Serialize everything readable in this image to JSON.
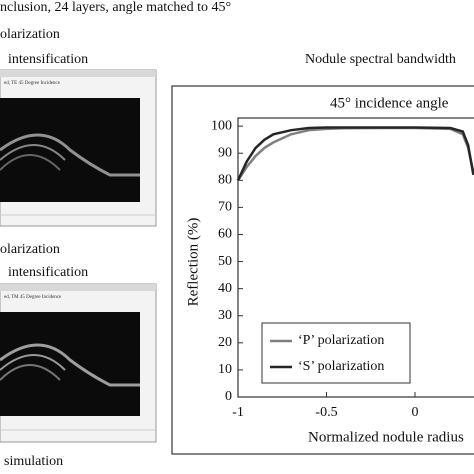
{
  "captions": {
    "top": "nclusion, 24 layers, angle matched to 45°",
    "first_pol": "olarization",
    "first_int": "intensification",
    "second_pol": "olarization",
    "second_int": "intensification",
    "bottom": "simulation"
  },
  "images": [
    {
      "header": "ed, TE 45 Degree Incidence"
    },
    {
      "header": "ed, TM 45 Degree Incidence"
    }
  ],
  "chart_data": {
    "type": "line",
    "title": "Nodule spectral bandwidth",
    "annotation": "45° incidence angle",
    "x_label": "Normalized nodule radius",
    "y_label": "Reflection (%)",
    "x": [
      -1,
      -0.95,
      -0.9,
      -0.85,
      -0.8,
      -0.7,
      -0.6,
      -0.5,
      -0.4,
      -0.2,
      0,
      0.2,
      0.27,
      0.3,
      0.33
    ],
    "series": [
      {
        "name": "‘P’ polarization",
        "color": "#808080",
        "values": [
          80,
          85,
          89,
          92,
          94,
          97,
          98.5,
          99,
          99.2,
          99.3,
          99.3,
          99,
          97,
          92,
          83
        ]
      },
      {
        "name": "‘S’ polarization",
        "color": "#262626",
        "values": [
          80,
          87,
          92,
          95,
          97,
          98.5,
          99.3,
          99.5,
          99.5,
          99.5,
          99.5,
          99.3,
          98,
          93,
          82
        ]
      }
    ],
    "xlim": [
      -1,
      1
    ],
    "ylim": [
      0,
      103
    ],
    "xticks": [
      -1,
      -0.5,
      0
    ],
    "yticks": [
      0,
      10,
      20,
      30,
      40,
      50,
      60,
      70,
      80,
      90,
      100
    ],
    "legend": "lower-left"
  }
}
